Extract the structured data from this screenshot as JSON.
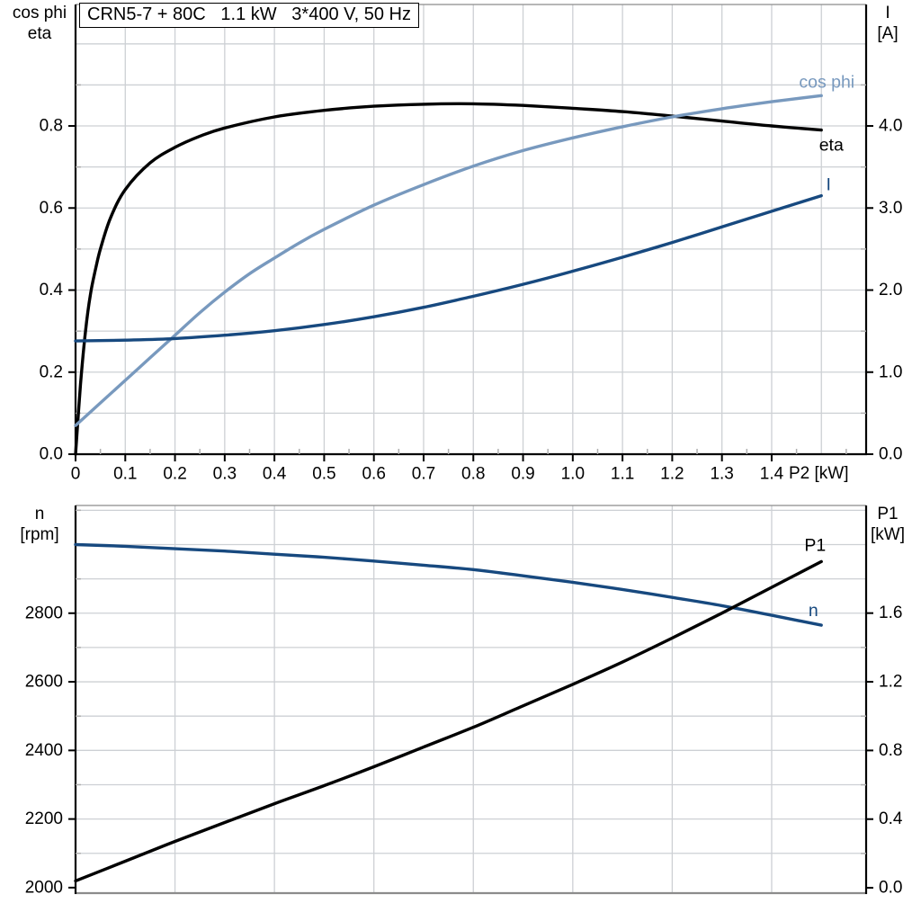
{
  "title": {
    "display": "CRN5-7 + 80C   1.1 kW   3*400 V, 50 Hz"
  },
  "colors": {
    "black": "#000000",
    "lightblue": "#7899be",
    "darkblue": "#17497f",
    "grid": "#cdd0d4",
    "minor": "#b0b0b0",
    "border": "#8c8c8c"
  },
  "chart_data": [
    {
      "type": "line",
      "title": "CRN5-7 + 80C   1.1 kW   3*400 V, 50 Hz",
      "x_axis": {
        "label": "P2 [kW]",
        "min": 0,
        "max": 1.59,
        "ticks": [
          0,
          0.1,
          0.2,
          0.3,
          0.4,
          0.5,
          0.6,
          0.7,
          0.8,
          0.9,
          1.0,
          1.1,
          1.2,
          1.3,
          1.4
        ],
        "tick_labels": [
          "0",
          "0.1",
          "0.2",
          "0.3",
          "0.4",
          "0.5",
          "0.6",
          "0.7",
          "0.8",
          "0.9",
          "1.0",
          "1.1",
          "1.2",
          "1.3",
          "1.4"
        ],
        "grid": {
          "from": 0.1,
          "to": 1.5,
          "step": 0.1
        },
        "minor": {
          "from": 0.05,
          "to": 1.55,
          "step": 0.1
        }
      },
      "y_left": {
        "label_lines": [
          "cos phi",
          "eta"
        ],
        "min": 0,
        "max": 1.096,
        "ticks": [
          0,
          0.2,
          0.4,
          0.6,
          0.8
        ],
        "tick_labels": [
          "0.0",
          "0.2",
          "0.4",
          "0.6",
          "0.8"
        ],
        "minor": {
          "from": 0.1,
          "to": 0.9,
          "step": 0.2
        }
      },
      "y_right": {
        "label_lines": [
          "I",
          "[A]"
        ],
        "min": 0,
        "max": 5.48,
        "ticks": [
          0,
          1,
          2,
          3,
          4
        ],
        "tick_labels": [
          "0.0",
          "1.0",
          "2.0",
          "3.0",
          "4.0"
        ],
        "minor": {
          "from": 0.5,
          "to": 4.5,
          "step": 1
        }
      },
      "y_grid": {
        "axis": "left",
        "values": {
          "from": 0.1,
          "to": 1.0,
          "step": 0.1
        }
      },
      "series": [
        {
          "name": "eta",
          "axis": "left",
          "color": "black",
          "points": [
            [
              0,
              0
            ],
            [
              0.01,
              0.17
            ],
            [
              0.02,
              0.3
            ],
            [
              0.03,
              0.39
            ],
            [
              0.04,
              0.45
            ],
            [
              0.05,
              0.5
            ],
            [
              0.07,
              0.575
            ],
            [
              0.1,
              0.645
            ],
            [
              0.15,
              0.71
            ],
            [
              0.2,
              0.748
            ],
            [
              0.25,
              0.775
            ],
            [
              0.3,
              0.795
            ],
            [
              0.4,
              0.822
            ],
            [
              0.5,
              0.838
            ],
            [
              0.6,
              0.848
            ],
            [
              0.7,
              0.853
            ],
            [
              0.8,
              0.854
            ],
            [
              0.9,
              0.85
            ],
            [
              1.0,
              0.843
            ],
            [
              1.1,
              0.835
            ],
            [
              1.2,
              0.824
            ],
            [
              1.3,
              0.812
            ],
            [
              1.4,
              0.8
            ],
            [
              1.5,
              0.79
            ]
          ]
        },
        {
          "name": "cos phi",
          "axis": "left",
          "color": "lightblue",
          "points": [
            [
              0,
              0.07
            ],
            [
              0.05,
              0.125
            ],
            [
              0.1,
              0.18
            ],
            [
              0.15,
              0.235
            ],
            [
              0.2,
              0.29
            ],
            [
              0.25,
              0.345
            ],
            [
              0.3,
              0.395
            ],
            [
              0.35,
              0.44
            ],
            [
              0.4,
              0.478
            ],
            [
              0.45,
              0.515
            ],
            [
              0.5,
              0.548
            ],
            [
              0.6,
              0.607
            ],
            [
              0.7,
              0.657
            ],
            [
              0.8,
              0.702
            ],
            [
              0.9,
              0.74
            ],
            [
              1.0,
              0.771
            ],
            [
              1.1,
              0.798
            ],
            [
              1.2,
              0.822
            ],
            [
              1.3,
              0.842
            ],
            [
              1.4,
              0.859
            ],
            [
              1.5,
              0.874
            ]
          ]
        },
        {
          "name": "I",
          "axis": "right",
          "color": "darkblue",
          "points": [
            [
              0,
              1.38
            ],
            [
              0.1,
              1.39
            ],
            [
              0.2,
              1.41
            ],
            [
              0.3,
              1.45
            ],
            [
              0.4,
              1.505
            ],
            [
              0.5,
              1.58
            ],
            [
              0.6,
              1.675
            ],
            [
              0.7,
              1.79
            ],
            [
              0.8,
              1.925
            ],
            [
              0.9,
              2.07
            ],
            [
              1.0,
              2.23
            ],
            [
              1.1,
              2.4
            ],
            [
              1.2,
              2.58
            ],
            [
              1.3,
              2.77
            ],
            [
              1.4,
              2.96
            ],
            [
              1.5,
              3.15
            ]
          ]
        }
      ]
    },
    {
      "type": "line",
      "x_axis": {
        "label": "",
        "min": 0,
        "max": 1.59,
        "ticks": [],
        "tick_labels": [],
        "grid": {
          "from": 0.2,
          "to": 1.4,
          "step": 0.2
        },
        "minor": null
      },
      "y_left": {
        "label_lines": [
          "n",
          "[rpm]"
        ],
        "min": 1984,
        "max": 3114,
        "ticks": [
          2000,
          2200,
          2400,
          2600,
          2800
        ],
        "tick_labels": [
          "2000",
          "2200",
          "2400",
          "2600",
          "2800"
        ],
        "minor": {
          "from": 2100,
          "to": 3100,
          "step": 200
        }
      },
      "y_right": {
        "label_lines": [
          "P1",
          "[kW]"
        ],
        "min": -0.031,
        "max": 2.227,
        "ticks": [
          0,
          0.4,
          0.8,
          1.2,
          1.6
        ],
        "tick_labels": [
          "0.0",
          "0.4",
          "0.8",
          "1.2",
          "1.6"
        ],
        "minor": {
          "from": 0.2,
          "to": 1.4,
          "step": 0.4
        }
      },
      "y_grid": {
        "axis": "left",
        "values": {
          "from": 2100,
          "to": 3100,
          "step": 100
        }
      },
      "series": [
        {
          "name": "n",
          "axis": "left",
          "color": "darkblue",
          "points": [
            [
              0,
              3000
            ],
            [
              0.1,
              2995
            ],
            [
              0.2,
              2988
            ],
            [
              0.3,
              2981
            ],
            [
              0.4,
              2972
            ],
            [
              0.5,
              2963
            ],
            [
              0.6,
              2952
            ],
            [
              0.7,
              2940
            ],
            [
              0.8,
              2927
            ],
            [
              0.9,
              2909
            ],
            [
              1.0,
              2890
            ],
            [
              1.1,
              2869
            ],
            [
              1.2,
              2846
            ],
            [
              1.3,
              2822
            ],
            [
              1.4,
              2794
            ],
            [
              1.5,
              2765
            ]
          ]
        },
        {
          "name": "P1",
          "axis": "right",
          "color": "black",
          "points": [
            [
              0,
              0.04
            ],
            [
              0.1,
              0.155
            ],
            [
              0.2,
              0.27
            ],
            [
              0.3,
              0.38
            ],
            [
              0.4,
              0.49
            ],
            [
              0.5,
              0.595
            ],
            [
              0.6,
              0.705
            ],
            [
              0.7,
              0.82
            ],
            [
              0.8,
              0.935
            ],
            [
              0.9,
              1.06
            ],
            [
              1.0,
              1.185
            ],
            [
              1.1,
              1.315
            ],
            [
              1.2,
              1.455
            ],
            [
              1.3,
              1.6
            ],
            [
              1.4,
              1.75
            ],
            [
              1.5,
              1.9
            ]
          ]
        }
      ]
    }
  ]
}
